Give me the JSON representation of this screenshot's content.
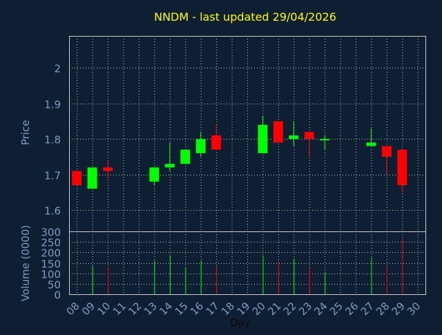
{
  "title": "NNDM - last updated 29/04/2026",
  "colors": {
    "background": "#0f1f33",
    "plot_background": "#0f1f33",
    "frame": "#d0d0d0",
    "grid": "#c8c8c8",
    "title": "#ffff00",
    "axis_text": "#7f9cc4",
    "up": "#00ff00",
    "down": "#ff0000"
  },
  "chart_data": [
    {
      "type": "candlestick",
      "title": "NNDM - last updated 29/04/2026",
      "ylabel": "Price",
      "ylim": [
        1.54,
        2.09
      ],
      "yticks": [
        1.6,
        1.7,
        1.8,
        1.9,
        2
      ],
      "ytick_labels": [
        "1.6",
        "1.7",
        "1.8",
        "1.9",
        "2"
      ],
      "grid": true,
      "days": [
        "08",
        "09",
        "10",
        "11",
        "12",
        "13",
        "14",
        "15",
        "16",
        "17",
        "18",
        "19",
        "20",
        "21",
        "22",
        "23",
        "24",
        "25",
        "26",
        "27",
        "28",
        "29",
        "30"
      ],
      "candles": [
        {
          "day": "08",
          "open": 1.71,
          "close": 1.67,
          "high": 1.71,
          "low": 1.67
        },
        {
          "day": "09",
          "open": 1.66,
          "close": 1.72,
          "high": 1.72,
          "low": 1.66
        },
        {
          "day": "10",
          "open": 1.72,
          "close": 1.71,
          "high": 1.74,
          "low": 1.69
        },
        {
          "day": "13",
          "open": 1.68,
          "close": 1.72,
          "high": 1.72,
          "low": 1.67
        },
        {
          "day": "14",
          "open": 1.72,
          "close": 1.73,
          "high": 1.79,
          "low": 1.71
        },
        {
          "day": "15",
          "open": 1.73,
          "close": 1.77,
          "high": 1.77,
          "low": 1.73
        },
        {
          "day": "16",
          "open": 1.76,
          "close": 1.8,
          "high": 1.82,
          "low": 1.75
        },
        {
          "day": "17",
          "open": 1.81,
          "close": 1.77,
          "high": 1.84,
          "low": 1.77
        },
        {
          "day": "20",
          "open": 1.76,
          "close": 1.84,
          "high": 1.865,
          "low": 1.76
        },
        {
          "day": "21",
          "open": 1.85,
          "close": 1.79,
          "high": 1.85,
          "low": 1.79
        },
        {
          "day": "22",
          "open": 1.8,
          "close": 1.81,
          "high": 1.85,
          "low": 1.78
        },
        {
          "day": "23",
          "open": 1.82,
          "close": 1.8,
          "high": 1.82,
          "low": 1.75
        },
        {
          "day": "24",
          "open": 1.8,
          "close": 1.8,
          "high": 1.81,
          "low": 1.77
        },
        {
          "day": "27",
          "open": 1.78,
          "close": 1.79,
          "high": 1.83,
          "low": 1.78
        },
        {
          "day": "28",
          "open": 1.78,
          "close": 1.75,
          "high": 1.78,
          "low": 1.7
        },
        {
          "day": "29",
          "open": 1.77,
          "close": 1.67,
          "high": 1.77,
          "low": 1.65
        }
      ]
    },
    {
      "type": "bar",
      "ylabel": "Volume (0000)",
      "xlabel": "Day",
      "ylim": [
        0,
        300
      ],
      "yticks": [
        0,
        50,
        100,
        150,
        200,
        250,
        300
      ],
      "ytick_labels": [
        "0",
        "50",
        "100",
        "150",
        "200",
        "250",
        "300"
      ],
      "grid": true,
      "bars": [
        {
          "day": "09",
          "value": 135,
          "dir": "up"
        },
        {
          "day": "10",
          "value": 130,
          "dir": "down"
        },
        {
          "day": "13",
          "value": 160,
          "dir": "up"
        },
        {
          "day": "14",
          "value": 185,
          "dir": "up"
        },
        {
          "day": "15",
          "value": 130,
          "dir": "up"
        },
        {
          "day": "16",
          "value": 160,
          "dir": "up"
        },
        {
          "day": "17",
          "value": 135,
          "dir": "down"
        },
        {
          "day": "20",
          "value": 185,
          "dir": "up"
        },
        {
          "day": "21",
          "value": 160,
          "dir": "down"
        },
        {
          "day": "22",
          "value": 170,
          "dir": "up"
        },
        {
          "day": "23",
          "value": 125,
          "dir": "down"
        },
        {
          "day": "24",
          "value": 105,
          "dir": "up"
        },
        {
          "day": "27",
          "value": 175,
          "dir": "up"
        },
        {
          "day": "28",
          "value": 135,
          "dir": "down"
        },
        {
          "day": "29",
          "value": 265,
          "dir": "down"
        }
      ]
    }
  ]
}
